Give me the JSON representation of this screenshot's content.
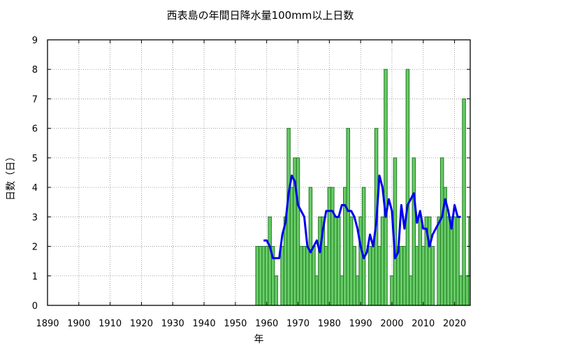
{
  "chart_data": {
    "type": "bar",
    "title": "西表島の年間日降水量100mm以上日数",
    "xlabel": "年",
    "ylabel": "日数（日）",
    "xlim": [
      1890,
      2025
    ],
    "ylim": [
      0,
      9
    ],
    "x_ticks": [
      1890,
      1900,
      1910,
      1920,
      1930,
      1940,
      1950,
      1960,
      1970,
      1980,
      1990,
      2000,
      2010,
      2020
    ],
    "y_ticks": [
      0,
      1,
      2,
      3,
      4,
      5,
      6,
      7,
      8,
      9
    ],
    "grid": true,
    "bar_color": "#66cc66",
    "bar_edge_color": "#227722",
    "line_color": "#0000ee",
    "series": [
      {
        "type": "bar",
        "x": [
          1957,
          1958,
          1959,
          1960,
          1961,
          1962,
          1963,
          1964,
          1965,
          1966,
          1967,
          1968,
          1969,
          1970,
          1971,
          1972,
          1973,
          1974,
          1975,
          1976,
          1977,
          1978,
          1979,
          1980,
          1981,
          1982,
          1983,
          1984,
          1985,
          1986,
          1987,
          1988,
          1989,
          1990,
          1991,
          1992,
          1993,
          1994,
          1995,
          1996,
          1997,
          1998,
          1999,
          2000,
          2001,
          2002,
          2003,
          2004,
          2005,
          2006,
          2007,
          2008,
          2009,
          2010,
          2011,
          2012,
          2013,
          2014,
          2015,
          2016,
          2017,
          2018,
          2019,
          2020,
          2021,
          2022,
          2023,
          2024
        ],
        "values": [
          2,
          2,
          2,
          2,
          3,
          2,
          1,
          0,
          2,
          3,
          6,
          4,
          5,
          5,
          2,
          2,
          2,
          4,
          2,
          1,
          3,
          3,
          2,
          4,
          4,
          3,
          3,
          1,
          4,
          6,
          3,
          2,
          1,
          3,
          4,
          0,
          2,
          2,
          6,
          2,
          3,
          8,
          0,
          1,
          5,
          2,
          2,
          2,
          8,
          1,
          5,
          2,
          3,
          2,
          3,
          3,
          2,
          0,
          3,
          5,
          4,
          3,
          3,
          3,
          3,
          1,
          7,
          1
        ],
        "extra_x": [
          2025
        ],
        "extra_values": [
          3
        ]
      },
      {
        "type": "line",
        "x": [
          1959,
          1960,
          1961,
          1962,
          1963,
          1964,
          1965,
          1966,
          1967,
          1968,
          1969,
          1970,
          1971,
          1972,
          1973,
          1974,
          1975,
          1976,
          1977,
          1978,
          1979,
          1980,
          1981,
          1982,
          1983,
          1984,
          1985,
          1986,
          1987,
          1988,
          1989,
          1990,
          1991,
          1992,
          1993,
          1994,
          1995,
          1996,
          1997,
          1998,
          1999,
          2000,
          2001,
          2002,
          2003,
          2004,
          2005,
          2006,
          2007,
          2008,
          2009,
          2010,
          2011,
          2012,
          2013,
          2014,
          2015,
          2016,
          2017,
          2018,
          2019,
          2020,
          2021,
          2022
        ],
        "values": [
          2.2,
          2.2,
          2.0,
          1.6,
          1.6,
          1.6,
          2.4,
          2.8,
          3.8,
          4.4,
          4.2,
          3.4,
          3.2,
          3.0,
          2.0,
          1.8,
          2.0,
          2.2,
          1.8,
          2.6,
          3.2,
          3.2,
          3.2,
          3.0,
          3.0,
          3.4,
          3.4,
          3.2,
          3.2,
          3.0,
          2.6,
          2.0,
          1.6,
          1.8,
          2.4,
          2.0,
          2.8,
          4.4,
          4.0,
          3.0,
          3.6,
          3.2,
          1.6,
          1.8,
          3.4,
          2.6,
          3.4,
          3.6,
          3.8,
          2.8,
          3.2,
          2.6,
          2.6,
          2.0,
          2.4,
          2.6,
          2.8,
          3.0,
          3.6,
          3.2,
          2.6,
          3.4,
          3.0,
          3.0
        ]
      }
    ]
  }
}
